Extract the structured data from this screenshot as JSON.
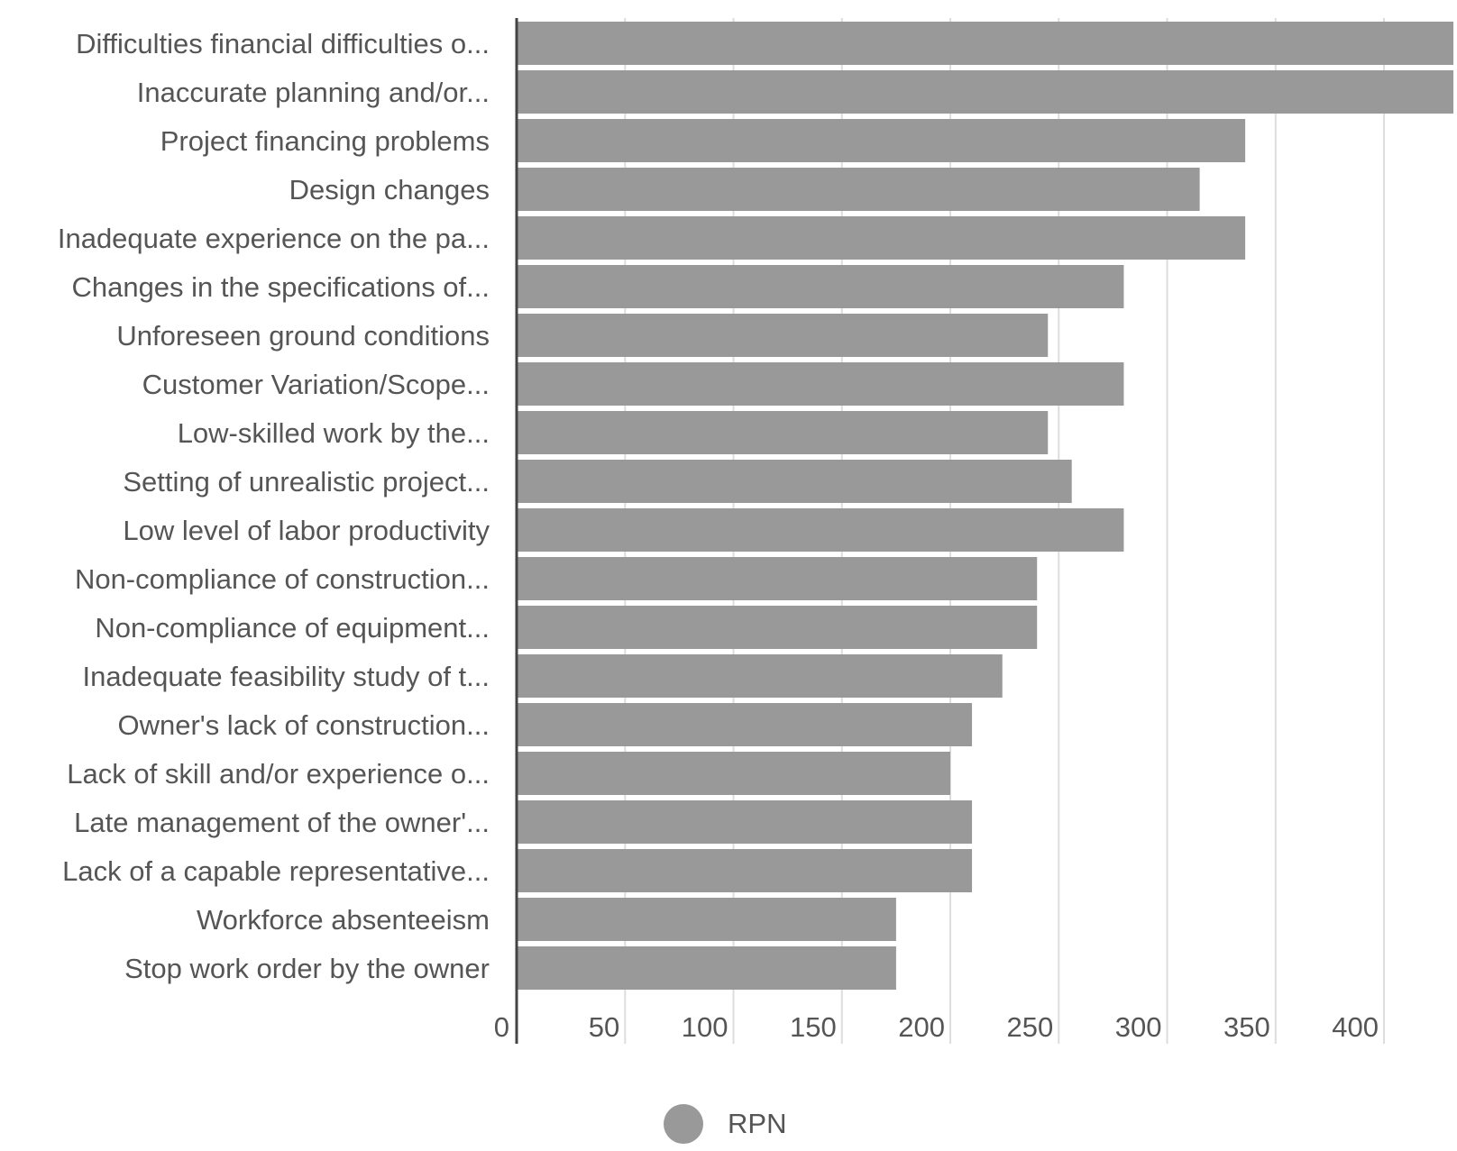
{
  "chart_data": {
    "type": "bar",
    "orientation": "horizontal",
    "categories": [
      "Difficulties financial difficulties o...",
      "Inaccurate planning and/or...",
      "Project financing problems",
      "Design changes",
      "Inadequate experience on the pa...",
      "Changes in the specifications of...",
      "Unforeseen ground conditions",
      "Customer Variation/Scope...",
      "Low-skilled work by the...",
      "Setting of unrealistic project...",
      "Low level of labor productivity",
      "Non-compliance of construction...",
      "Non-compliance of equipment...",
      "Inadequate feasibility study of t...",
      "Owner's lack of construction...",
      "Lack of skill and/or experience o...",
      "Late management of the owner'...",
      "Lack of a capable representative...",
      "Workforce absenteeism",
      "Stop work order by the owner"
    ],
    "series": [
      {
        "name": "RPN",
        "color": "#999999",
        "values": [
          432,
          432,
          336,
          315,
          336,
          280,
          245,
          280,
          245,
          256,
          280,
          240,
          240,
          224,
          210,
          200,
          210,
          210,
          175,
          175
        ]
      }
    ],
    "xlim": [
      0,
      432
    ],
    "xticks": [
      0,
      50,
      100,
      150,
      200,
      250,
      300,
      350,
      400
    ],
    "grid": true,
    "legend_position": "bottom"
  }
}
